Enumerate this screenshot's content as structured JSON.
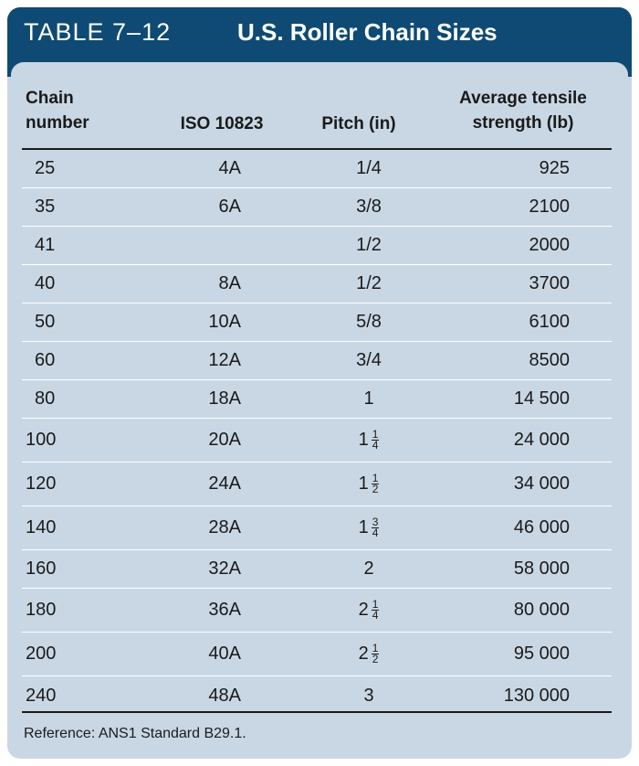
{
  "header": {
    "table_id": "TABLE 7–12",
    "title": "U.S. Roller Chain Sizes"
  },
  "columns": [
    {
      "label": "Chain\nnumber"
    },
    {
      "label": "ISO 10823"
    },
    {
      "label": "Pitch (in)"
    },
    {
      "label": "Average tensile\nstrength (lb)"
    }
  ],
  "rows": [
    {
      "chain": "25",
      "iso": "4A",
      "pitch": "1/4",
      "tensile": "925"
    },
    {
      "chain": "35",
      "iso": "6A",
      "pitch": "3/8",
      "tensile": "2100"
    },
    {
      "chain": "41",
      "iso": "",
      "pitch": "1/2",
      "tensile": "2000"
    },
    {
      "chain": "40",
      "iso": "8A",
      "pitch": "1/2",
      "tensile": "3700"
    },
    {
      "chain": "50",
      "iso": "10A",
      "pitch": "5/8",
      "tensile": "6100"
    },
    {
      "chain": "60",
      "iso": "12A",
      "pitch": "3/4",
      "tensile": "8500"
    },
    {
      "chain": "80",
      "iso": "18A",
      "pitch": "1",
      "tensile": "14 500"
    },
    {
      "chain": "100",
      "iso": "20A",
      "pitch": {
        "whole": "1",
        "num": "1",
        "den": "4"
      },
      "tensile": "24 000"
    },
    {
      "chain": "120",
      "iso": "24A",
      "pitch": {
        "whole": "1",
        "num": "1",
        "den": "2"
      },
      "tensile": "34 000"
    },
    {
      "chain": "140",
      "iso": "28A",
      "pitch": {
        "whole": "1",
        "num": "3",
        "den": "4"
      },
      "tensile": "46 000"
    },
    {
      "chain": "160",
      "iso": "32A",
      "pitch": "2",
      "tensile": "58 000"
    },
    {
      "chain": "180",
      "iso": "36A",
      "pitch": {
        "whole": "2",
        "num": "1",
        "den": "4"
      },
      "tensile": "80 000"
    },
    {
      "chain": "200",
      "iso": "40A",
      "pitch": {
        "whole": "2",
        "num": "1",
        "den": "2"
      },
      "tensile": "95 000"
    },
    {
      "chain": "240",
      "iso": "48A",
      "pitch": "3",
      "tensile": "130 000"
    }
  ],
  "reference": "Reference: ANS1 Standard B29.1.",
  "colors": {
    "header_bg": "#0e4a73",
    "panel_bg": "#c9d7e5",
    "row_rule": "#ffffff",
    "text": "#1a1a1a"
  }
}
